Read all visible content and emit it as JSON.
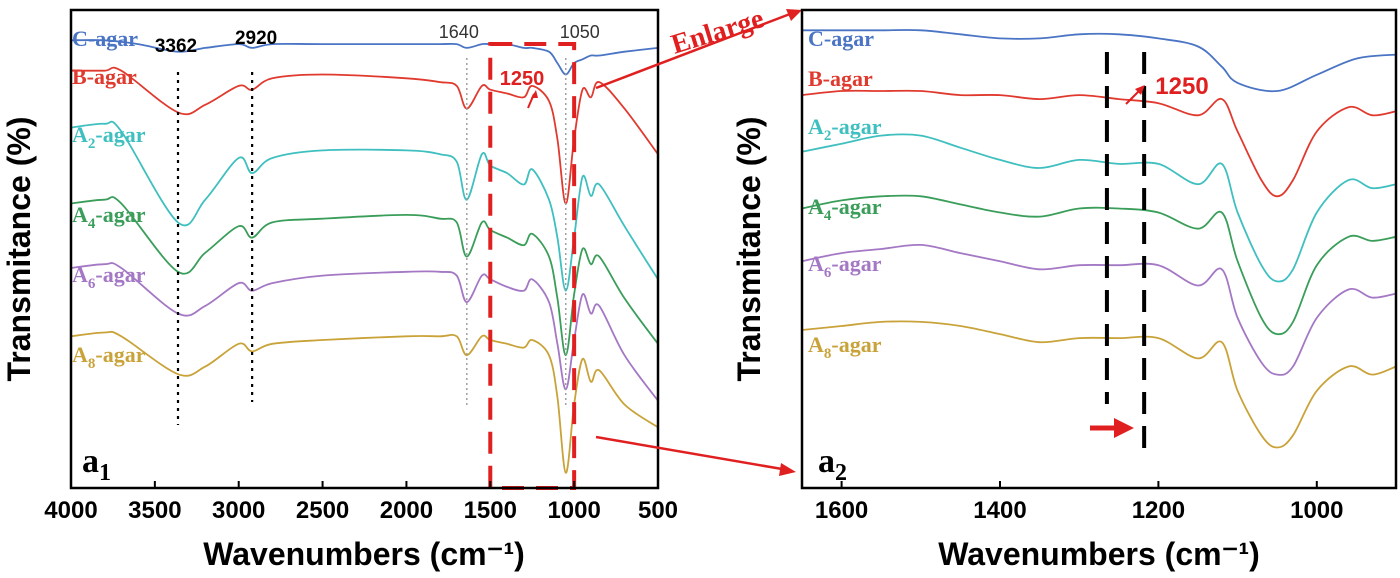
{
  "chart_data": [
    {
      "type": "line",
      "panel": "a1",
      "panel_letter": "a",
      "panel_sub": "1",
      "xlabel": "Wavenumbers (cm⁻¹)",
      "ylabel": "Transmitance (%)",
      "xlim": [
        4000,
        500
      ],
      "xticks": [
        4000,
        3500,
        3000,
        2500,
        2000,
        1500,
        1000,
        500
      ],
      "x_reversed": true,
      "y_ticks_shown": false,
      "series": [
        {
          "name": "C-agar",
          "label_base": "C-agar",
          "label_sub": "",
          "color": "#4a74c4",
          "x": [
            4000,
            3800,
            3600,
            3362,
            3200,
            3000,
            2920,
            2800,
            2500,
            2000,
            1800,
            1700,
            1640,
            1550,
            1500,
            1400,
            1300,
            1250,
            1150,
            1100,
            1050,
            1000,
            950,
            900,
            850,
            700,
            500
          ],
          "y": [
            88,
            88,
            87,
            85,
            86,
            87,
            86,
            87,
            87,
            87,
            87,
            87,
            86,
            87,
            87,
            87,
            86,
            86,
            85,
            82,
            79,
            82,
            83,
            84,
            84,
            85,
            86
          ]
        },
        {
          "name": "B-agar",
          "label_base": "B-agar",
          "label_sub": "",
          "color": "#e03a2f",
          "x": [
            4000,
            3800,
            3700,
            3362,
            3200,
            3000,
            2920,
            2800,
            2500,
            2000,
            1800,
            1700,
            1640,
            1550,
            1500,
            1400,
            1300,
            1250,
            1150,
            1100,
            1050,
            1000,
            950,
            900,
            850,
            700,
            500
          ],
          "y": [
            80,
            80,
            80,
            69,
            71,
            76,
            75,
            78,
            79,
            78,
            77,
            76,
            70,
            76,
            75,
            74,
            73,
            76,
            72,
            62,
            45,
            62,
            75,
            73,
            77,
            70,
            58
          ]
        },
        {
          "name": "A2-agar",
          "label_base": "A",
          "label_sub": "2",
          "color": "#3fbfbf",
          "x": [
            4000,
            3800,
            3700,
            3362,
            3200,
            3000,
            2920,
            2800,
            2500,
            2000,
            1800,
            1700,
            1640,
            1550,
            1500,
            1400,
            1300,
            1250,
            1150,
            1100,
            1050,
            1000,
            950,
            900,
            850,
            700,
            500
          ],
          "y": [
            65,
            66,
            64,
            40,
            46,
            57,
            53,
            57,
            59,
            59,
            58,
            56,
            46,
            58,
            55,
            53,
            50,
            54,
            46,
            36,
            22,
            36,
            52,
            47,
            50,
            39,
            25
          ]
        },
        {
          "name": "A4-agar",
          "label_base": "A",
          "label_sub": "4",
          "color": "#3a9e5a",
          "x": [
            4000,
            3800,
            3700,
            3362,
            3200,
            3000,
            2920,
            2800,
            2500,
            2000,
            1800,
            1700,
            1640,
            1550,
            1500,
            1400,
            1300,
            1250,
            1150,
            1100,
            1050,
            1000,
            950,
            900,
            850,
            700,
            500
          ],
          "y": [
            45,
            46,
            45,
            27,
            32,
            39,
            36,
            40,
            41,
            42,
            41,
            40,
            31,
            40,
            38,
            36,
            34,
            37,
            31,
            20,
            5,
            21,
            33,
            29,
            31,
            20,
            8
          ]
        },
        {
          "name": "A6-agar",
          "label_base": "A",
          "label_sub": "6",
          "color": "#a478c4",
          "x": [
            4000,
            3800,
            3700,
            3362,
            3200,
            3000,
            2920,
            2800,
            2500,
            2000,
            1800,
            1700,
            1640,
            1550,
            1500,
            1400,
            1300,
            1250,
            1150,
            1100,
            1050,
            1000,
            950,
            900,
            850,
            700,
            500
          ],
          "y": [
            28,
            29,
            28,
            16,
            18,
            24,
            22,
            24,
            26,
            27,
            27,
            26,
            19,
            26,
            25,
            23,
            22,
            25,
            19,
            8,
            -4,
            9,
            21,
            16,
            18,
            5,
            -7
          ]
        },
        {
          "name": "A8-agar",
          "label_base": "A",
          "label_sub": "8",
          "color": "#c9a33a",
          "x": [
            4000,
            3800,
            3700,
            3362,
            3200,
            3000,
            2920,
            2800,
            2500,
            2000,
            1800,
            1700,
            1640,
            1550,
            1500,
            1400,
            1300,
            1250,
            1150,
            1100,
            1050,
            1000,
            950,
            900,
            850,
            700,
            500
          ],
          "y": [
            10,
            11,
            10,
            0,
            2,
            8,
            6,
            8,
            9,
            10,
            10,
            10,
            5,
            10,
            9,
            8,
            7,
            9,
            5,
            -6,
            -26,
            -8,
            4,
            -2,
            1,
            -8,
            -14
          ]
        }
      ],
      "peak_lines": [
        {
          "x": 3362,
          "label": "3362",
          "style": "black-dotted"
        },
        {
          "x": 2920,
          "label": "2920",
          "style": "black-dotted"
        },
        {
          "x": 1640,
          "label": "1640",
          "style": "gray-dotted"
        },
        {
          "x": 1050,
          "label": "1050",
          "style": "gray-dotted"
        }
      ],
      "annotations": [
        {
          "text": "1250",
          "x": 1250,
          "color": "#e02020"
        },
        {
          "text": "Enlarge",
          "color": "#e02020"
        }
      ],
      "highlight_box": {
        "x": [
          1500,
          1000
        ],
        "color": "#e02020",
        "style": "dashed"
      }
    },
    {
      "type": "line",
      "panel": "a2",
      "panel_letter": "a",
      "panel_sub": "2",
      "xlabel": "Wavenumbers (cm⁻¹)",
      "ylabel": "Transmitance (%)",
      "xlim": [
        1650,
        900
      ],
      "xticks": [
        1600,
        1400,
        1200,
        1000
      ],
      "x_reversed": true,
      "y_ticks_shown": false,
      "series": [
        {
          "name": "C-agar",
          "label_base": "C-agar",
          "label_sub": "",
          "color": "#4a74c4",
          "x": [
            1650,
            1600,
            1550,
            1500,
            1450,
            1400,
            1350,
            1300,
            1250,
            1200,
            1150,
            1120,
            1100,
            1050,
            1000,
            950,
            900
          ],
          "y": [
            95,
            95,
            95,
            95,
            94,
            93,
            93,
            94,
            94,
            93,
            91,
            86,
            82,
            80,
            84,
            88,
            89
          ]
        },
        {
          "name": "B-agar",
          "label_base": "B-agar",
          "label_sub": "",
          "color": "#e03a2f",
          "x": [
            1650,
            1600,
            1550,
            1500,
            1450,
            1400,
            1350,
            1300,
            1250,
            1200,
            1150,
            1120,
            1100,
            1070,
            1050,
            1030,
            1000,
            960,
            930,
            900
          ],
          "y": [
            79,
            80,
            80,
            80,
            79,
            79,
            78,
            79,
            78,
            77,
            74,
            78,
            70,
            58,
            54,
            58,
            70,
            76,
            74,
            75
          ]
        },
        {
          "name": "A2-agar",
          "label_base": "A",
          "label_sub": "2",
          "color": "#3fbfbf",
          "x": [
            1650,
            1600,
            1550,
            1500,
            1450,
            1400,
            1350,
            1300,
            1250,
            1200,
            1150,
            1120,
            1100,
            1070,
            1050,
            1030,
            1000,
            960,
            930,
            900
          ],
          "y": [
            65,
            67,
            69,
            69,
            66,
            63,
            61,
            63,
            62,
            62,
            57,
            62,
            50,
            37,
            33,
            36,
            50,
            58,
            56,
            57
          ]
        },
        {
          "name": "A4-agar",
          "label_base": "A",
          "label_sub": "4",
          "color": "#3a9e5a",
          "x": [
            1650,
            1600,
            1550,
            1500,
            1450,
            1400,
            1350,
            1300,
            1250,
            1200,
            1150,
            1120,
            1100,
            1070,
            1050,
            1030,
            1000,
            960,
            930,
            900
          ],
          "y": [
            51,
            53,
            54,
            54,
            52,
            50,
            49,
            51,
            51,
            50,
            46,
            50,
            38,
            24,
            20,
            23,
            37,
            44,
            43,
            44
          ]
        },
        {
          "name": "A6-agar",
          "label_base": "A",
          "label_sub": "6",
          "color": "#a478c4",
          "x": [
            1650,
            1600,
            1550,
            1500,
            1450,
            1400,
            1350,
            1300,
            1250,
            1200,
            1150,
            1120,
            1100,
            1070,
            1050,
            1030,
            1000,
            960,
            930,
            900
          ],
          "y": [
            38,
            40,
            41,
            42,
            40,
            38,
            36,
            37,
            37,
            37,
            32,
            36,
            24,
            13,
            10,
            12,
            24,
            31,
            29,
            30
          ]
        },
        {
          "name": "A8-agar",
          "label_base": "A",
          "label_sub": "8",
          "color": "#c9a33a",
          "x": [
            1650,
            1600,
            1550,
            1500,
            1450,
            1400,
            1350,
            1300,
            1250,
            1200,
            1150,
            1120,
            1100,
            1070,
            1050,
            1030,
            1000,
            960,
            930,
            900
          ],
          "y": [
            21,
            22,
            23,
            23,
            22,
            20,
            18,
            19,
            19,
            19,
            14,
            18,
            6,
            -5,
            -8,
            -5,
            6,
            12,
            10,
            12
          ]
        }
      ],
      "peak_lines": [
        {
          "x": 1265,
          "label": "",
          "style": "black-dashed"
        },
        {
          "x": 1218,
          "label": "",
          "style": "black-dashed"
        }
      ],
      "annotations": [
        {
          "text": "1250",
          "x": 1250,
          "color": "#e02020"
        }
      ]
    }
  ]
}
